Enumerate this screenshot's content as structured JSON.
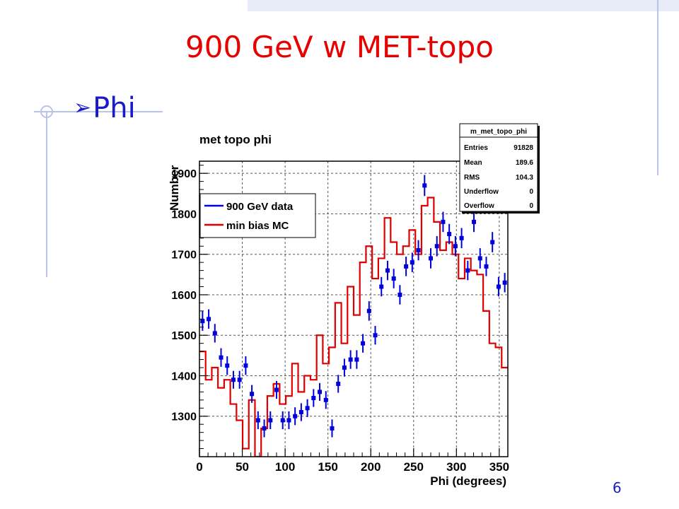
{
  "slide": {
    "title": "900 GeV w MET-topo",
    "bullet": "Phi",
    "page_number": "6"
  },
  "colors": {
    "title": "#e60000",
    "text": "#1a1acc",
    "data_series": "#0000dd",
    "mc_series": "#e00000",
    "decoration": "#b8c4e8"
  },
  "chart_data": {
    "type": "histogram",
    "title": "met topo phi",
    "xlabel": "Phi (degrees)",
    "ylabel": "Number",
    "xlim": [
      0,
      360
    ],
    "ylim": [
      1200,
      1930
    ],
    "x_ticks": [
      0,
      50,
      100,
      150,
      200,
      250,
      300,
      350
    ],
    "y_ticks": [
      1300,
      1400,
      1500,
      1600,
      1700,
      1800,
      1900
    ],
    "y_tick_labels": [
      "1300",
      "1400",
      "1500",
      "1600",
      "1700",
      "1800",
      "1900"
    ],
    "grid": true,
    "bin_width": 7.2,
    "legend": {
      "position": "upper-left",
      "entries": [
        "900 GeV data",
        "min bias MC"
      ]
    },
    "stats_box": {
      "name": "m_met_topo_phi",
      "rows": [
        {
          "label": "Entries",
          "value": "91828"
        },
        {
          "label": "Mean",
          "value": "189.6"
        },
        {
          "label": "RMS",
          "value": "104.3"
        },
        {
          "label": "Underflow",
          "value": "0"
        },
        {
          "label": "Overflow",
          "value": "0"
        }
      ]
    },
    "series": [
      {
        "name": "900 GeV data",
        "style": "points-with-errors",
        "x": [
          3.6,
          10.8,
          18.0,
          25.2,
          32.4,
          39.6,
          46.8,
          54.0,
          61.2,
          68.4,
          75.6,
          82.8,
          90.0,
          97.2,
          104.4,
          111.6,
          118.8,
          126.0,
          133.2,
          140.4,
          147.6,
          154.8,
          162.0,
          169.2,
          176.4,
          183.6,
          190.8,
          198.0,
          205.2,
          212.4,
          219.6,
          226.8,
          234.0,
          241.2,
          248.4,
          255.6,
          262.8,
          270.0,
          277.2,
          284.4,
          291.6,
          298.8,
          306.0,
          313.2,
          320.4,
          327.6,
          334.8,
          342.0,
          349.2,
          356.4
        ],
        "values": [
          1535,
          1540,
          1505,
          1445,
          1425,
          1390,
          1390,
          1425,
          1355,
          1290,
          1270,
          1290,
          1365,
          1290,
          1290,
          1300,
          1310,
          1320,
          1345,
          1360,
          1340,
          1270,
          1380,
          1420,
          1440,
          1440,
          1480,
          1560,
          1500,
          1620,
          1660,
          1640,
          1600,
          1670,
          1680,
          1710,
          1870,
          1690,
          1720,
          1780,
          1750,
          1720,
          1740,
          1660,
          1780,
          1690,
          1670,
          1730,
          1620,
          1630
        ],
        "errors": [
          24,
          24,
          23,
          23,
          23,
          22,
          22,
          23,
          22,
          22,
          22,
          22,
          22,
          22,
          22,
          22,
          22,
          22,
          22,
          22,
          22,
          22,
          22,
          22,
          23,
          23,
          23,
          24,
          23,
          24,
          24,
          24,
          24,
          24,
          24,
          25,
          26,
          25,
          25,
          25,
          25,
          25,
          25,
          24,
          25,
          25,
          24,
          25,
          24,
          24
        ]
      },
      {
        "name": "min bias MC",
        "style": "step",
        "x": [
          3.6,
          10.8,
          18.0,
          25.2,
          32.4,
          39.6,
          46.8,
          54.0,
          61.2,
          68.4,
          75.6,
          82.8,
          90.0,
          97.2,
          104.4,
          111.6,
          118.8,
          126.0,
          133.2,
          140.4,
          147.6,
          154.8,
          162.0,
          169.2,
          176.4,
          183.6,
          190.8,
          198.0,
          205.2,
          212.4,
          219.6,
          226.8,
          234.0,
          241.2,
          248.4,
          255.6,
          262.8,
          270.0,
          277.2,
          284.4,
          291.6,
          298.8,
          306.0,
          313.2,
          320.4,
          327.6,
          334.8,
          342.0,
          349.2,
          356.4
        ],
        "values": [
          1460,
          1390,
          1420,
          1370,
          1390,
          1330,
          1290,
          1220,
          1340,
          1200,
          1270,
          1350,
          1380,
          1330,
          1350,
          1430,
          1360,
          1400,
          1390,
          1500,
          1430,
          1470,
          1580,
          1480,
          1620,
          1550,
          1680,
          1720,
          1640,
          1690,
          1790,
          1730,
          1700,
          1720,
          1760,
          1700,
          1820,
          1840,
          1780,
          1710,
          1730,
          1700,
          1640,
          1690,
          1660,
          1650,
          1560,
          1480,
          1470,
          1420
        ]
      }
    ]
  }
}
